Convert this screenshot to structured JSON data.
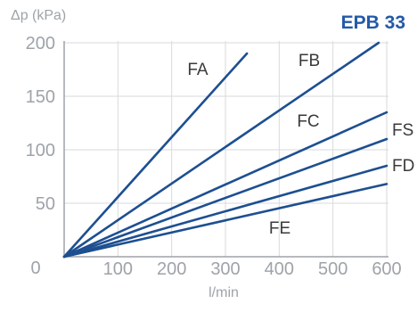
{
  "chart_data": {
    "type": "line",
    "title": "EPB 33",
    "ylabel": "Δp (kPa)",
    "xlabel": "l/min",
    "xlim": [
      0,
      600
    ],
    "ylim": [
      0,
      200
    ],
    "x_ticks": [
      0,
      100,
      200,
      300,
      400,
      500,
      600
    ],
    "y_ticks": [
      50,
      100,
      150,
      200
    ],
    "origin_label": "0",
    "grid": true,
    "series": [
      {
        "name": "FA",
        "x": [
          0,
          340
        ],
        "y": [
          0,
          190
        ]
      },
      {
        "name": "FB",
        "x": [
          0,
          585
        ],
        "y": [
          0,
          200
        ]
      },
      {
        "name": "FC",
        "x": [
          0,
          600
        ],
        "y": [
          0,
          135
        ]
      },
      {
        "name": "FS",
        "x": [
          0,
          600
        ],
        "y": [
          0,
          110
        ]
      },
      {
        "name": "FD",
        "x": [
          0,
          600
        ],
        "y": [
          0,
          85
        ]
      },
      {
        "name": "FE",
        "x": [
          0,
          600
        ],
        "y": [
          0,
          68
        ]
      }
    ],
    "colors": {
      "series": "#1d4f91",
      "title": "#2359a8",
      "grid": "#d9dadc",
      "text": "#9ea3a9",
      "series_label": "#3a3a3a"
    }
  }
}
